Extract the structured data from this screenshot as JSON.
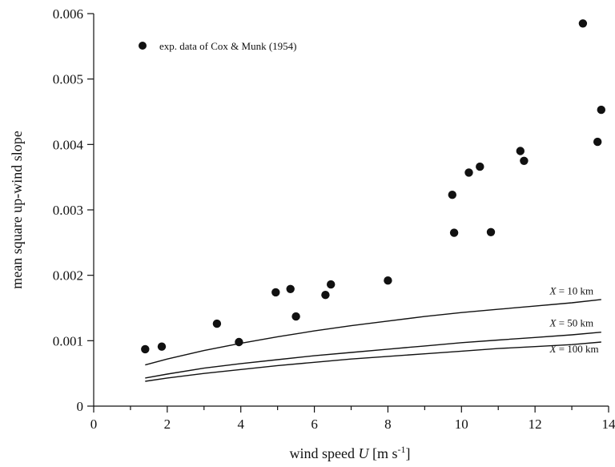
{
  "chart_data": {
    "type": "scatter",
    "xlabel": {
      "prefix": "wind speed ",
      "symbol": "U",
      "unit_main": " [m s",
      "unit_sup": "-1",
      "unit_end": "]"
    },
    "ylabel": "mean square up-wind slope",
    "xlim": [
      0,
      14
    ],
    "ylim": [
      0,
      0.006
    ],
    "x_ticks": [
      0,
      2,
      4,
      6,
      8,
      10,
      12,
      14
    ],
    "x_tick_labels": [
      "0",
      "2",
      "4",
      "6",
      "8",
      "10",
      "12",
      "14"
    ],
    "x_minor_ticks": [
      1,
      3,
      5,
      7,
      9,
      11,
      13
    ],
    "y_ticks": [
      0,
      0.001,
      0.002,
      0.003,
      0.004,
      0.005,
      0.006
    ],
    "y_tick_labels": [
      "0",
      "0.001",
      "0.002",
      "0.003",
      "0.004",
      "0.005",
      "0.006"
    ],
    "grid": false,
    "legend": {
      "position": "top-left",
      "label": "exp. data of Cox & Munk (1954)"
    },
    "series": [
      {
        "name": "exp. data of Cox & Munk (1954)",
        "kind": "points",
        "points": [
          [
            1.4,
            0.00087
          ],
          [
            1.85,
            0.00091
          ],
          [
            3.35,
            0.00126
          ],
          [
            3.95,
            0.00098
          ],
          [
            4.95,
            0.00174
          ],
          [
            5.35,
            0.00179
          ],
          [
            5.5,
            0.00137
          ],
          [
            6.3,
            0.0017
          ],
          [
            6.45,
            0.00186
          ],
          [
            8.0,
            0.00192
          ],
          [
            9.75,
            0.00323
          ],
          [
            9.8,
            0.00265
          ],
          [
            10.2,
            0.00357
          ],
          [
            10.5,
            0.00366
          ],
          [
            10.8,
            0.00266
          ],
          [
            11.6,
            0.0039
          ],
          [
            11.7,
            0.00375
          ],
          [
            13.3,
            0.00585
          ],
          [
            13.7,
            0.00404
          ],
          [
            13.8,
            0.00453
          ]
        ]
      },
      {
        "name": "X = 10 km",
        "label": {
          "symbol": "X",
          "rest": " = 10 km",
          "at": [
            12.4,
            0.00171
          ]
        },
        "kind": "line",
        "x": [
          1.4,
          2,
          3,
          4,
          5,
          6,
          7,
          8,
          9,
          10,
          11,
          12,
          13,
          13.8
        ],
        "y": [
          0.00063,
          0.00072,
          0.00085,
          0.00096,
          0.00106,
          0.00115,
          0.00123,
          0.0013,
          0.00137,
          0.00143,
          0.00148,
          0.00153,
          0.00158,
          0.00163
        ]
      },
      {
        "name": "X = 50 km",
        "label": {
          "symbol": "X",
          "rest": " = 50 km",
          "at": [
            12.4,
            0.00122
          ]
        },
        "kind": "line",
        "x": [
          1.4,
          2,
          3,
          4,
          5,
          6,
          7,
          8,
          9,
          10,
          11,
          12,
          13,
          13.8
        ],
        "y": [
          0.00043,
          0.00049,
          0.00058,
          0.00065,
          0.00071,
          0.00077,
          0.00082,
          0.00087,
          0.00092,
          0.00097,
          0.00101,
          0.00105,
          0.00109,
          0.00113
        ]
      },
      {
        "name": "X = 100 km",
        "label": {
          "symbol": "X",
          "rest": " = 100 km",
          "at": [
            12.4,
            0.00082
          ]
        },
        "kind": "line",
        "x": [
          1.4,
          2,
          3,
          4,
          5,
          6,
          7,
          8,
          9,
          10,
          11,
          12,
          13,
          13.8
        ],
        "y": [
          0.00038,
          0.00043,
          0.0005,
          0.00056,
          0.00062,
          0.00067,
          0.00072,
          0.00076,
          0.0008,
          0.00084,
          0.00088,
          0.00091,
          0.00094,
          0.00098
        ]
      }
    ]
  }
}
